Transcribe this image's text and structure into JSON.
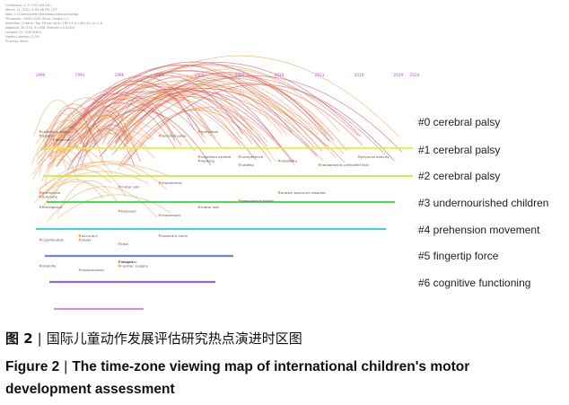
{
  "header_lines": [
    "CiteSpace, v. 5.7.R2 (64-bit)",
    "March 11, 2021 4:54:06 PM CST",
    "WoS: C:\\Users\\admin\\Desktop\\citespace\\data",
    "Timespan: 1990-2020 (Slice Length=1)",
    "Selection Criteria: Top 50 per slice, LRF=3.0, L/N=10, e=2.0",
    "Network: N=233, E=598 (Density=0.0221)",
    "Largest CC: 206 (88%)",
    "Nodes Labeled: 2.0%",
    "Pruning: None"
  ],
  "caption": {
    "cn_prefix": "图 2",
    "cn_sep": "|",
    "cn_text": "国际儿童动作发展评估研究热点演进时区图",
    "en_prefix": "Figure 2",
    "en_sep": "|",
    "en_text": "The time-zone viewing map of international children's motor development assessment"
  },
  "chart_data": {
    "type": "timezone-network",
    "years": [
      "1990",
      "1993",
      "1996",
      "2001",
      "2004",
      "2007",
      "2010",
      "2013",
      "2016",
      "2019",
      "2020"
    ],
    "clusters": [
      {
        "id": 0,
        "label": "#0 cerebral palsy",
        "color": "#e8e84a"
      },
      {
        "id": 1,
        "label": "#1 cerebral palsy",
        "color": "#cde64c"
      },
      {
        "id": 2,
        "label": "#2 cerebral palsy",
        "color": "#3ec94a"
      },
      {
        "id": 3,
        "label": "#3 undernourished children",
        "color": "#35c2c8"
      },
      {
        "id": 4,
        "label": "#4 prehension movement",
        "color": "#5a6fd0"
      },
      {
        "id": 5,
        "label": "#5 fingertip force",
        "color": "#8a4fc8"
      },
      {
        "id": 6,
        "label": "#6 cognitive functioning",
        "color": "#b58ad6"
      }
    ],
    "node_labels": [
      {
        "text": "cognitive ability",
        "year": 1990,
        "row": 0
      },
      {
        "text": "growth",
        "year": 1990,
        "row": 0
      },
      {
        "text": "behavior",
        "year": 1991,
        "row": 0
      },
      {
        "text": "individual",
        "year": 2004,
        "row": 0
      },
      {
        "text": "cerebral palsy",
        "year": 2001,
        "row": 0
      },
      {
        "text": "cognition system",
        "year": 2004,
        "row": 1
      },
      {
        "text": "walking",
        "year": 2004,
        "row": 1
      },
      {
        "text": "validity",
        "year": 2007,
        "row": 1
      },
      {
        "text": "competence",
        "year": 2007,
        "row": 1
      },
      {
        "text": "reliability",
        "year": 2010,
        "row": 1
      },
      {
        "text": "randomized controlled trial",
        "year": 2013,
        "row": 1
      },
      {
        "text": "physical activity",
        "year": 2016,
        "row": 1
      },
      {
        "text": "impairment",
        "year": 2001,
        "row": 2
      },
      {
        "text": "motor skill",
        "year": 1996,
        "row": 2
      },
      {
        "text": "premature",
        "year": 1990,
        "row": 3
      },
      {
        "text": "outcome",
        "year": 1990,
        "row": 3
      },
      {
        "text": "executive function",
        "year": 2007,
        "row": 3
      },
      {
        "text": "autism spectrum disorder",
        "year": 2010,
        "row": 3
      },
      {
        "text": "intelligence",
        "year": 1990,
        "row": 4
      },
      {
        "text": "behavior",
        "year": 1996,
        "row": 4
      },
      {
        "text": "movement",
        "year": 2001,
        "row": 4
      },
      {
        "text": "motor skill",
        "year": 2004,
        "row": 4
      },
      {
        "text": "accuracy",
        "year": 1993,
        "row": 5
      },
      {
        "text": "delay",
        "year": 1993,
        "row": 5
      },
      {
        "text": "task",
        "year": 1996,
        "row": 5
      },
      {
        "text": "isometric force",
        "year": 2001,
        "row": 5
      },
      {
        "text": "coordination",
        "year": 1990,
        "row": 5
      },
      {
        "text": "weight",
        "year": 1996,
        "row": 6
      },
      {
        "text": "cardiac surgery",
        "year": 1996,
        "row": 6
      },
      {
        "text": "complication",
        "year": 1993,
        "row": 6
      },
      {
        "text": "response",
        "year": 1996,
        "row": 6
      },
      {
        "text": "stability",
        "year": 1990,
        "row": 6
      }
    ]
  }
}
